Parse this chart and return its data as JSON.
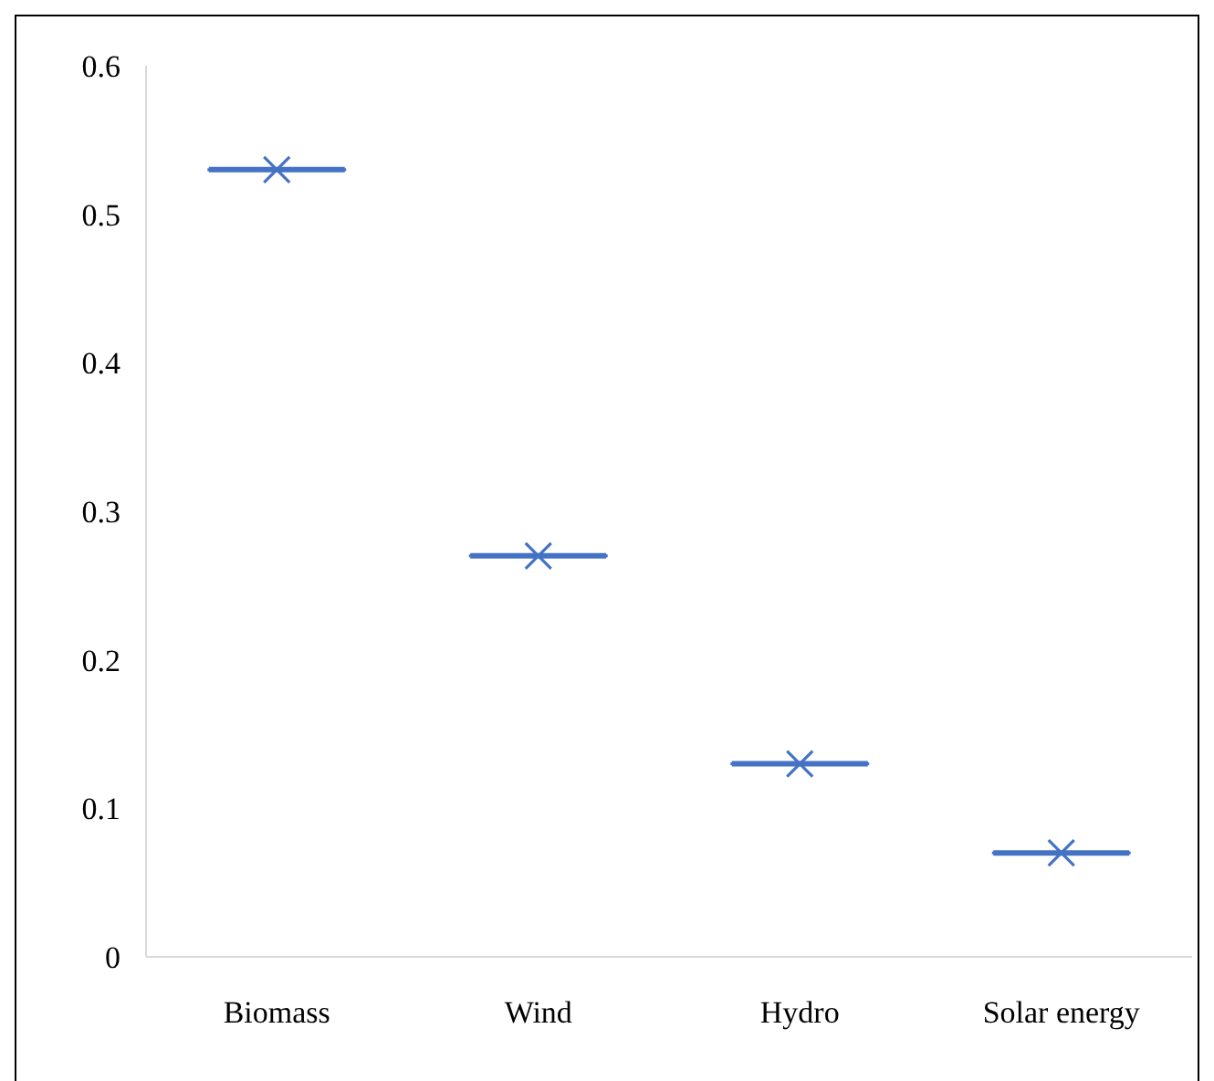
{
  "chart_data": {
    "type": "box",
    "categories": [
      "Biomass",
      "Wind",
      "Hydro",
      "Solar energy"
    ],
    "boxes": [
      {
        "low": 0.53,
        "q1": 0.53,
        "median": 0.53,
        "q3": 0.53,
        "high": 0.53,
        "mean": 0.53
      },
      {
        "low": 0.27,
        "q1": 0.27,
        "median": 0.27,
        "q3": 0.27,
        "high": 0.27,
        "mean": 0.27
      },
      {
        "low": 0.13,
        "q1": 0.13,
        "median": 0.13,
        "q3": 0.13,
        "high": 0.13,
        "mean": 0.13
      },
      {
        "low": 0.07,
        "q1": 0.07,
        "median": 0.07,
        "q3": 0.07,
        "high": 0.07,
        "mean": 0.07
      }
    ],
    "color": "#4472c4",
    "marker": "cross",
    "ylim": [
      0,
      0.6
    ],
    "yticks": [
      0,
      0.1,
      0.2,
      0.3,
      0.4,
      0.5,
      0.6
    ],
    "grid": false
  }
}
